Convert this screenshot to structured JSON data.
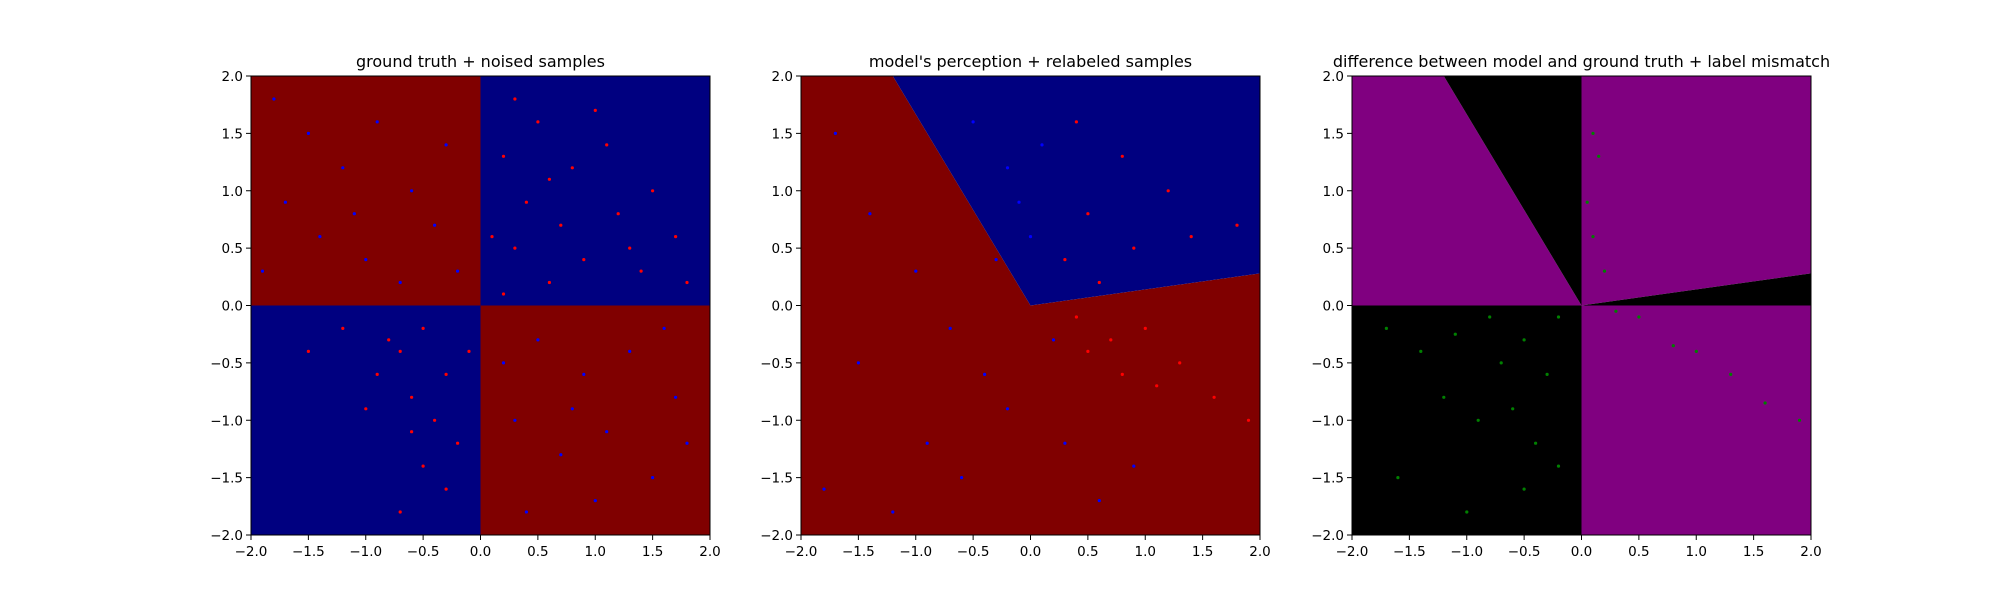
{
  "colors": {
    "region_red": "#800000",
    "region_blue": "#000080",
    "region_purple": "#800080",
    "region_black": "#000000",
    "point_red": "#ff0000",
    "point_blue": "#0000ff",
    "point_green": "#008000"
  },
  "chart_data": [
    {
      "type": "scatter",
      "title": "ground truth + noised samples",
      "xlim": [
        -2.0,
        2.0
      ],
      "ylim": [
        -2.0,
        2.0
      ],
      "xticks": [
        "−2.0",
        "−1.5",
        "−1.0",
        "−0.5",
        "0.0",
        "0.5",
        "1.0",
        "1.5",
        "2.0"
      ],
      "yticks": [
        "−2.0",
        "−1.5",
        "−1.0",
        "−0.5",
        "0.0",
        "0.5",
        "1.0",
        "1.5",
        "2.0"
      ],
      "grid": false,
      "background_regions": [
        {
          "polygon": [
            [
              -2,
              0
            ],
            [
              0,
              0
            ],
            [
              0,
              2
            ],
            [
              -2,
              2
            ]
          ],
          "color": "region_red"
        },
        {
          "polygon": [
            [
              0,
              0
            ],
            [
              2,
              0
            ],
            [
              2,
              2
            ],
            [
              0,
              2
            ]
          ],
          "color": "region_blue"
        },
        {
          "polygon": [
            [
              -2,
              -2
            ],
            [
              0,
              -2
            ],
            [
              0,
              0
            ],
            [
              -2,
              0
            ]
          ],
          "color": "region_blue"
        },
        {
          "polygon": [
            [
              0,
              -2
            ],
            [
              2,
              -2
            ],
            [
              2,
              0
            ],
            [
              0,
              0
            ]
          ],
          "color": "region_red"
        }
      ],
      "series": [
        {
          "color": "point_red",
          "points": [
            [
              0.3,
              1.8
            ],
            [
              0.5,
              1.6
            ],
            [
              0.2,
              1.3
            ],
            [
              0.8,
              1.2
            ],
            [
              1.1,
              1.4
            ],
            [
              1.5,
              1.0
            ],
            [
              0.4,
              0.9
            ],
            [
              0.7,
              0.7
            ],
            [
              1.2,
              0.8
            ],
            [
              1.7,
              0.6
            ],
            [
              0.3,
              0.5
            ],
            [
              0.9,
              0.4
            ],
            [
              1.4,
              0.3
            ],
            [
              0.6,
              0.2
            ],
            [
              0.2,
              0.1
            ],
            [
              1.8,
              0.2
            ],
            [
              1.0,
              1.7
            ],
            [
              0.6,
              1.1
            ],
            [
              1.3,
              0.5
            ],
            [
              0.1,
              0.6
            ],
            [
              -0.5,
              -0.2
            ],
            [
              -0.7,
              -0.4
            ],
            [
              -0.3,
              -0.6
            ],
            [
              -0.6,
              -0.8
            ],
            [
              -0.4,
              -1.0
            ],
            [
              -0.8,
              -0.3
            ],
            [
              -0.2,
              -1.2
            ],
            [
              -0.5,
              -1.4
            ],
            [
              -0.3,
              -1.6
            ],
            [
              -0.9,
              -0.6
            ],
            [
              -0.6,
              -1.1
            ],
            [
              -1.2,
              -0.2
            ],
            [
              -0.1,
              -0.4
            ],
            [
              -1.5,
              -0.4
            ],
            [
              -0.7,
              -1.8
            ],
            [
              -1.0,
              -0.9
            ]
          ]
        },
        {
          "color": "point_blue",
          "points": [
            [
              -1.8,
              1.8
            ],
            [
              -1.5,
              1.5
            ],
            [
              -1.2,
              1.2
            ],
            [
              -0.9,
              1.6
            ],
            [
              -0.6,
              1.0
            ],
            [
              -0.3,
              1.4
            ],
            [
              -1.7,
              0.9
            ],
            [
              -1.4,
              0.6
            ],
            [
              -1.0,
              0.4
            ],
            [
              -0.7,
              0.2
            ],
            [
              -0.4,
              0.7
            ],
            [
              -0.2,
              0.3
            ],
            [
              -1.9,
              0.3
            ],
            [
              -1.1,
              0.8
            ],
            [
              0.5,
              -0.3
            ],
            [
              0.9,
              -0.6
            ],
            [
              1.3,
              -0.4
            ],
            [
              1.7,
              -0.8
            ],
            [
              0.3,
              -1.0
            ],
            [
              0.7,
              -1.3
            ],
            [
              1.1,
              -1.1
            ],
            [
              1.5,
              -1.5
            ],
            [
              0.4,
              -1.8
            ],
            [
              1.0,
              -1.7
            ],
            [
              1.8,
              -1.2
            ],
            [
              0.2,
              -0.5
            ],
            [
              1.6,
              -0.2
            ],
            [
              0.8,
              -0.9
            ]
          ]
        }
      ]
    },
    {
      "type": "scatter",
      "title": "model's perception + relabeled samples",
      "xlim": [
        -2.0,
        2.0
      ],
      "ylim": [
        -2.0,
        2.0
      ],
      "xticks": [
        "−2.0",
        "−1.5",
        "−1.0",
        "−0.5",
        "0.0",
        "0.5",
        "1.0",
        "1.5",
        "2.0"
      ],
      "yticks": [
        "−2.0",
        "−1.5",
        "−1.0",
        "−0.5",
        "0.0",
        "0.5",
        "1.0",
        "1.5",
        "2.0"
      ],
      "grid": false,
      "background_regions": [
        {
          "polygon": [
            [
              -2,
              -2
            ],
            [
              2,
              -2
            ],
            [
              2,
              0.28
            ],
            [
              0,
              0
            ],
            [
              -1.2,
              2
            ],
            [
              -2,
              2
            ]
          ],
          "color": "region_red"
        },
        {
          "polygon": [
            [
              -1.2,
              2
            ],
            [
              0,
              0
            ],
            [
              2,
              0.28
            ],
            [
              2,
              2
            ]
          ],
          "color": "region_blue"
        }
      ],
      "series": [
        {
          "color": "point_red",
          "points": [
            [
              0.4,
              1.6
            ],
            [
              0.8,
              1.3
            ],
            [
              1.2,
              1.0
            ],
            [
              0.5,
              0.8
            ],
            [
              0.9,
              0.5
            ],
            [
              1.4,
              0.6
            ],
            [
              1.8,
              0.7
            ],
            [
              0.3,
              0.4
            ],
            [
              0.6,
              0.2
            ],
            [
              0.4,
              -0.1
            ],
            [
              0.7,
              -0.3
            ],
            [
              1.0,
              -0.2
            ],
            [
              1.3,
              -0.5
            ],
            [
              0.8,
              -0.6
            ],
            [
              1.6,
              -0.8
            ],
            [
              1.9,
              -1.0
            ],
            [
              0.5,
              -0.4
            ],
            [
              1.1,
              -0.7
            ]
          ]
        },
        {
          "color": "point_blue",
          "points": [
            [
              -0.5,
              1.6
            ],
            [
              -0.2,
              1.2
            ],
            [
              -0.1,
              0.9
            ],
            [
              0.1,
              1.4
            ],
            [
              0.0,
              0.6
            ],
            [
              -0.3,
              0.4
            ],
            [
              -1.7,
              1.5
            ],
            [
              -1.4,
              0.8
            ],
            [
              -1.0,
              0.3
            ],
            [
              -0.7,
              -0.2
            ],
            [
              -0.4,
              -0.6
            ],
            [
              -0.2,
              -0.9
            ],
            [
              -0.9,
              -1.2
            ],
            [
              -1.5,
              -0.5
            ],
            [
              -1.8,
              -1.6
            ],
            [
              0.3,
              -1.2
            ],
            [
              0.6,
              -1.7
            ],
            [
              0.2,
              -0.3
            ],
            [
              -0.6,
              -1.5
            ],
            [
              -1.2,
              -1.8
            ],
            [
              0.9,
              -1.4
            ]
          ]
        }
      ]
    },
    {
      "type": "scatter",
      "title": "difference between model and ground truth + label mismatch",
      "xlim": [
        -2.0,
        2.0
      ],
      "ylim": [
        -2.0,
        2.0
      ],
      "xticks": [
        "−2.0",
        "−1.5",
        "−1.0",
        "−0.5",
        "0.0",
        "0.5",
        "1.0",
        "1.5",
        "2.0"
      ],
      "yticks": [
        "−2.0",
        "−1.5",
        "−1.0",
        "−0.5",
        "0.0",
        "0.5",
        "1.0",
        "1.5",
        "2.0"
      ],
      "grid": false,
      "background_regions": [
        {
          "polygon": [
            [
              -2,
              0
            ],
            [
              0,
              0
            ],
            [
              -1.2,
              2
            ],
            [
              -2,
              2
            ]
          ],
          "color": "region_purple"
        },
        {
          "polygon": [
            [
              -1.2,
              2
            ],
            [
              0,
              0
            ],
            [
              0,
              2
            ]
          ],
          "color": "region_black"
        },
        {
          "polygon": [
            [
              0,
              0
            ],
            [
              2,
              0.28
            ],
            [
              2,
              2
            ],
            [
              0,
              2
            ]
          ],
          "color": "region_purple"
        },
        {
          "polygon": [
            [
              0,
              0
            ],
            [
              2,
              0
            ],
            [
              2,
              0.28
            ]
          ],
          "color": "region_black"
        },
        {
          "polygon": [
            [
              -2,
              -2
            ],
            [
              0,
              -2
            ],
            [
              0,
              0
            ],
            [
              -2,
              0
            ]
          ],
          "color": "region_black"
        },
        {
          "polygon": [
            [
              0,
              -2
            ],
            [
              2,
              -2
            ],
            [
              2,
              0
            ],
            [
              0,
              0
            ]
          ],
          "color": "region_purple"
        }
      ],
      "series": [
        {
          "color": "point_green",
          "points": [
            [
              0.1,
              1.5
            ],
            [
              0.15,
              1.3
            ],
            [
              0.05,
              0.9
            ],
            [
              0.1,
              0.6
            ],
            [
              0.2,
              0.3
            ],
            [
              0.3,
              -0.05
            ],
            [
              0.5,
              -0.1
            ],
            [
              0.8,
              -0.35
            ],
            [
              1.0,
              -0.4
            ],
            [
              1.3,
              -0.6
            ],
            [
              1.6,
              -0.85
            ],
            [
              1.9,
              -1.0
            ],
            [
              -0.2,
              -0.1
            ],
            [
              -0.5,
              -0.3
            ],
            [
              -0.8,
              -0.1
            ],
            [
              -1.1,
              -0.25
            ],
            [
              -1.4,
              -0.4
            ],
            [
              -1.7,
              -0.2
            ],
            [
              -0.3,
              -0.6
            ],
            [
              -0.6,
              -0.9
            ],
            [
              -0.4,
              -1.2
            ],
            [
              -0.9,
              -1.0
            ],
            [
              -1.2,
              -0.8
            ],
            [
              -0.5,
              -1.6
            ],
            [
              -1.0,
              -1.8
            ],
            [
              -1.6,
              -1.5
            ],
            [
              -0.2,
              -1.4
            ],
            [
              -0.7,
              -0.5
            ]
          ]
        }
      ]
    }
  ]
}
